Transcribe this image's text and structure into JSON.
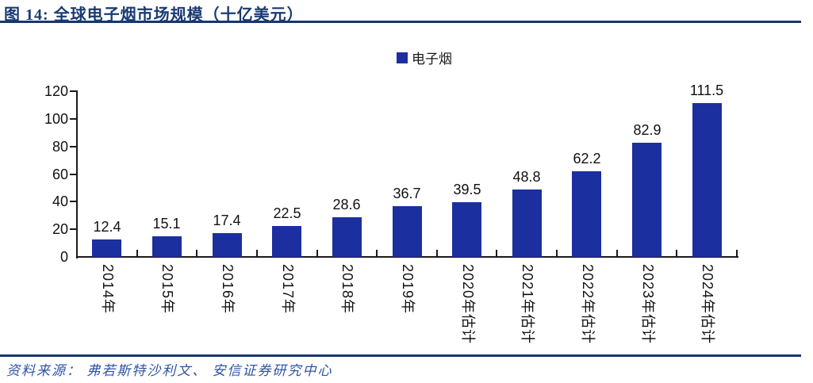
{
  "header": {
    "title": "图 14:  全球电子烟市场规模（十亿美元）"
  },
  "chart_data": {
    "type": "bar",
    "title": "全球电子烟市场规模（十亿美元）",
    "legend_entries": [
      "电子烟"
    ],
    "legend_position": "top-center",
    "categories": [
      "2014年",
      "2015年",
      "2016年",
      "2017年",
      "2018年",
      "2019年",
      "2020年估计",
      "2021年估计",
      "2022年估计",
      "2023年估计",
      "2024年估计"
    ],
    "series": [
      {
        "name": "电子烟",
        "values": [
          12.4,
          15.1,
          17.4,
          22.5,
          28.6,
          36.7,
          39.5,
          48.8,
          62.2,
          82.9,
          111.5
        ]
      }
    ],
    "data_labels": [
      "12.4",
      "15.1",
      "17.4",
      "22.5",
      "28.6",
      "36.7",
      "39.5",
      "48.8",
      "62.2",
      "82.9",
      "111.5"
    ],
    "ylim": [
      0,
      120
    ],
    "ytick_step": 20,
    "ytick_labels": [
      "0",
      "20",
      "40",
      "60",
      "80",
      "100",
      "120"
    ],
    "grid": false
  },
  "footer": {
    "source": "资料来源： 弗若斯特沙利文、 安信证券研究中心"
  },
  "colors": {
    "bar_blue": "#1c2f9e",
    "navy_rule": "#17376d",
    "title_navy": "#1a3a73",
    "axis_black": "#1a1a1a",
    "source_blue": "#2f55a5"
  }
}
